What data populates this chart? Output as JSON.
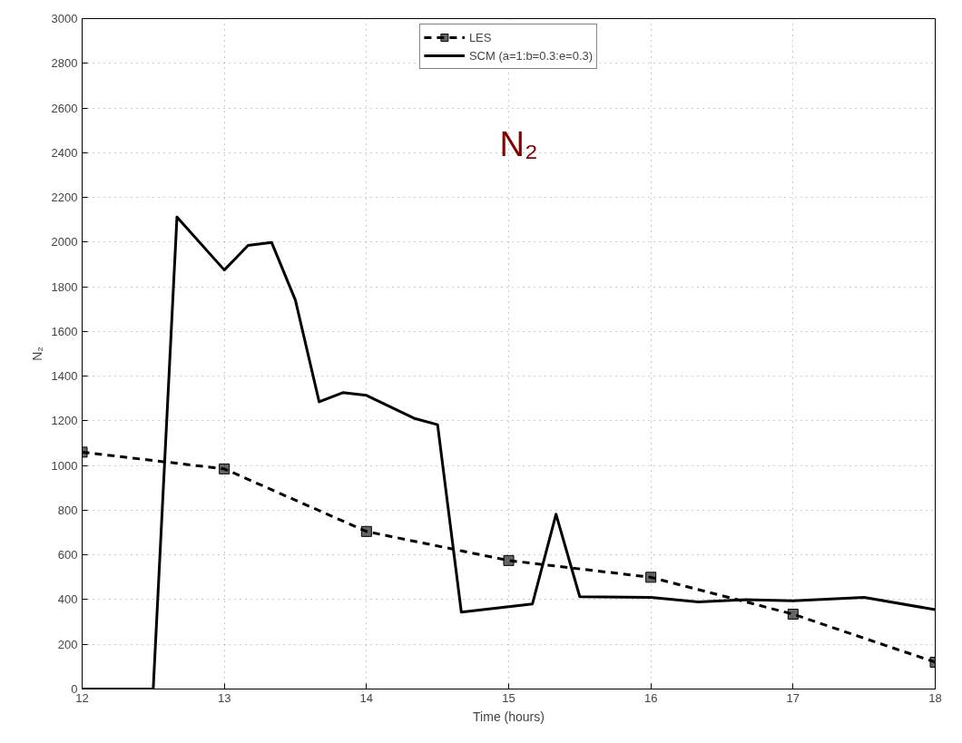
{
  "chart_data": {
    "type": "line",
    "xlabel": "Time (hours)",
    "ylabel": "N₂",
    "annotations": [
      "N₂"
    ],
    "xlim": [
      12,
      18
    ],
    "xticks": [
      12,
      13,
      14,
      15,
      16,
      17,
      18
    ],
    "ylim": [
      0,
      3000
    ],
    "yticks": [
      0,
      200,
      400,
      600,
      800,
      1000,
      1200,
      1400,
      1600,
      1800,
      2000,
      2200,
      2400,
      2600,
      2800,
      3000
    ],
    "grid": true,
    "legend": "top",
    "series": [
      {
        "name": "LES",
        "color": "#000000",
        "line_style": "dashed",
        "marker": "square",
        "x": [
          12,
          13,
          14,
          15,
          16,
          17,
          18
        ],
        "values": [
          1060,
          985,
          705,
          575,
          500,
          335,
          120
        ]
      },
      {
        "name": "SCM (a=1:b=0.3:e=0.3)",
        "color": "#000000",
        "line_style": "solid",
        "marker": "none",
        "x": [
          12,
          12.5,
          12.667,
          13,
          13.167,
          13.333,
          13.5,
          13.667,
          13.833,
          14,
          14.333,
          14.5,
          14.667,
          15.167,
          15.333,
          15.5,
          16,
          16.333,
          16.667,
          17,
          17.5,
          18
        ],
        "values": [
          0,
          0,
          2112,
          1875,
          1985,
          1998,
          1740,
          1285,
          1326,
          1314,
          1212,
          1183,
          344,
          381,
          782,
          413,
          410,
          390,
          400,
          395,
          410,
          355
        ]
      }
    ]
  }
}
